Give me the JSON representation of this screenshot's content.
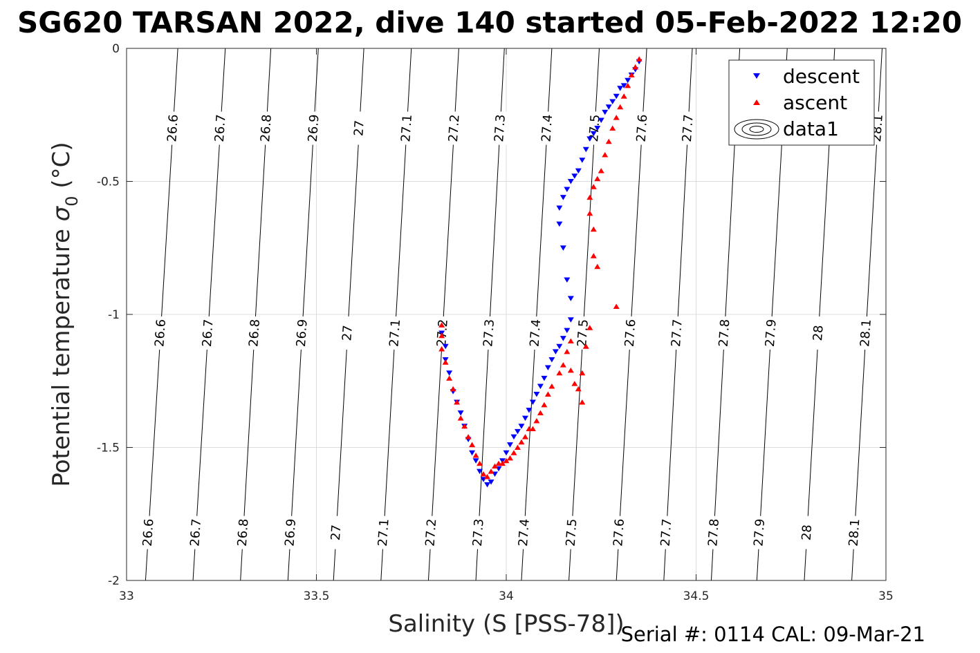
{
  "chart_data": {
    "type": "scatter",
    "title": "SG620 TARSAN 2022, dive 140 started 05-Feb-2022 12:20",
    "xlabel": "Salinity (S [PSS-78])",
    "ylabel_main": "Potential temperature ",
    "ylabel_symbol": "σ",
    "ylabel_sub": "0",
    "ylabel_unit": " (°C)",
    "footer": "Serial #: 0114  CAL: 09-Mar-21",
    "xlim": [
      33,
      35
    ],
    "ylim": [
      -2,
      0
    ],
    "x_ticks": [
      33,
      33.5,
      34,
      34.5,
      35
    ],
    "x_tick_labels": [
      "33",
      "33.5",
      "34",
      "34.5",
      "35"
    ],
    "y_ticks": [
      0,
      -0.5,
      -1,
      -1.5,
      -2
    ],
    "y_tick_labels": [
      "0",
      "-0.5",
      "-1",
      "-1.5",
      "-2"
    ],
    "grid": true,
    "legend_position": "top-right",
    "legend": [
      "descent",
      "ascent",
      "data1"
    ],
    "colors": {
      "descent": "#0000ff",
      "ascent": "#ff0000",
      "contour": "#000000",
      "grid": "#dcdcdc"
    },
    "isopycnals": {
      "levels": [
        26.6,
        26.7,
        26.8,
        26.9,
        27,
        27.1,
        27.2,
        27.3,
        27.4,
        27.5,
        27.6,
        27.7,
        27.8,
        27.9,
        28,
        28.1
      ],
      "labels": [
        "26.6",
        "26.7",
        "26.8",
        "26.9",
        "27",
        "27.1",
        "27.2",
        "27.3",
        "27.4",
        "27.5",
        "27.6",
        "27.7",
        "27.8",
        "27.9",
        "28",
        "28.1"
      ],
      "salinity_at_theta_0": [
        33.135,
        33.26,
        33.38,
        33.505,
        33.625,
        33.75,
        33.875,
        33.995,
        34.12,
        34.245,
        34.37,
        34.49,
        34.615,
        34.74,
        34.865,
        34.99
      ],
      "salinity_at_theta_minus2": [
        33.05,
        33.175,
        33.3,
        33.425,
        33.545,
        33.67,
        33.795,
        33.92,
        34.04,
        34.165,
        34.29,
        34.415,
        34.54,
        34.66,
        34.785,
        34.91
      ],
      "label_rows_theta": [
        -0.3,
        -1.07,
        -1.82
      ]
    },
    "series": [
      {
        "name": "descent",
        "marker": "triangle-down",
        "points": [
          [
            34.35,
            -0.05
          ],
          [
            34.34,
            -0.08
          ],
          [
            34.33,
            -0.1
          ],
          [
            34.32,
            -0.12
          ],
          [
            34.31,
            -0.14
          ],
          [
            34.3,
            -0.15
          ],
          [
            34.29,
            -0.18
          ],
          [
            34.28,
            -0.2
          ],
          [
            34.27,
            -0.22
          ],
          [
            34.26,
            -0.24
          ],
          [
            34.25,
            -0.27
          ],
          [
            34.24,
            -0.3
          ],
          [
            34.23,
            -0.32
          ],
          [
            34.22,
            -0.34
          ],
          [
            34.21,
            -0.38
          ],
          [
            34.2,
            -0.42
          ],
          [
            34.19,
            -0.46
          ],
          [
            34.18,
            -0.48
          ],
          [
            34.17,
            -0.5
          ],
          [
            34.16,
            -0.53
          ],
          [
            34.15,
            -0.56
          ],
          [
            34.14,
            -0.6
          ],
          [
            34.14,
            -0.66
          ],
          [
            34.15,
            -0.75
          ],
          [
            34.16,
            -0.87
          ],
          [
            34.17,
            -0.94
          ],
          [
            34.17,
            -1.02
          ],
          [
            34.16,
            -1.06
          ],
          [
            34.15,
            -1.09
          ],
          [
            34.14,
            -1.12
          ],
          [
            34.13,
            -1.14
          ],
          [
            34.12,
            -1.17
          ],
          [
            34.11,
            -1.2
          ],
          [
            34.1,
            -1.24
          ],
          [
            34.09,
            -1.27
          ],
          [
            34.08,
            -1.3
          ],
          [
            34.07,
            -1.33
          ],
          [
            34.06,
            -1.36
          ],
          [
            34.05,
            -1.39
          ],
          [
            34.04,
            -1.42
          ],
          [
            34.03,
            -1.44
          ],
          [
            34.02,
            -1.46
          ],
          [
            34.01,
            -1.49
          ],
          [
            34.0,
            -1.52
          ],
          [
            33.99,
            -1.55
          ],
          [
            33.98,
            -1.58
          ],
          [
            33.97,
            -1.6
          ],
          [
            33.96,
            -1.63
          ],
          [
            33.95,
            -1.64
          ],
          [
            33.94,
            -1.62
          ],
          [
            33.93,
            -1.59
          ],
          [
            33.92,
            -1.55
          ],
          [
            33.91,
            -1.52
          ],
          [
            33.9,
            -1.47
          ],
          [
            33.89,
            -1.42
          ],
          [
            33.88,
            -1.37
          ],
          [
            33.87,
            -1.33
          ],
          [
            33.86,
            -1.29
          ],
          [
            33.85,
            -1.22
          ],
          [
            33.84,
            -1.17
          ],
          [
            33.84,
            -1.12
          ],
          [
            33.83,
            -1.07
          ]
        ]
      },
      {
        "name": "ascent",
        "marker": "triangle-up",
        "points": [
          [
            34.35,
            -0.04
          ],
          [
            34.34,
            -0.07
          ],
          [
            34.33,
            -0.1
          ],
          [
            34.32,
            -0.14
          ],
          [
            34.31,
            -0.18
          ],
          [
            34.3,
            -0.22
          ],
          [
            34.29,
            -0.26
          ],
          [
            34.28,
            -0.3
          ],
          [
            34.27,
            -0.35
          ],
          [
            34.26,
            -0.4
          ],
          [
            34.25,
            -0.46
          ],
          [
            34.24,
            -0.49
          ],
          [
            34.23,
            -0.52
          ],
          [
            34.22,
            -0.56
          ],
          [
            34.22,
            -0.62
          ],
          [
            34.23,
            -0.68
          ],
          [
            34.23,
            -0.78
          ],
          [
            34.24,
            -0.82
          ],
          [
            34.29,
            -0.97
          ],
          [
            34.22,
            -1.05
          ],
          [
            34.21,
            -1.12
          ],
          [
            34.2,
            -1.22
          ],
          [
            34.19,
            -1.28
          ],
          [
            34.2,
            -1.33
          ],
          [
            34.18,
            -1.26
          ],
          [
            34.17,
            -1.21
          ],
          [
            34.17,
            -1.1
          ],
          [
            34.16,
            -1.14
          ],
          [
            34.15,
            -1.19
          ],
          [
            34.14,
            -1.22
          ],
          [
            34.12,
            -1.27
          ],
          [
            34.11,
            -1.3
          ],
          [
            34.1,
            -1.34
          ],
          [
            34.09,
            -1.37
          ],
          [
            34.08,
            -1.4
          ],
          [
            34.07,
            -1.43
          ],
          [
            34.06,
            -1.43
          ],
          [
            34.05,
            -1.46
          ],
          [
            34.04,
            -1.48
          ],
          [
            34.03,
            -1.5
          ],
          [
            34.02,
            -1.52
          ],
          [
            34.01,
            -1.54
          ],
          [
            34.0,
            -1.55
          ],
          [
            33.99,
            -1.56
          ],
          [
            33.98,
            -1.56
          ],
          [
            33.97,
            -1.57
          ],
          [
            33.96,
            -1.59
          ],
          [
            33.95,
            -1.61
          ],
          [
            33.94,
            -1.6
          ],
          [
            33.93,
            -1.56
          ],
          [
            33.92,
            -1.53
          ],
          [
            33.91,
            -1.49
          ],
          [
            33.9,
            -1.46
          ],
          [
            33.89,
            -1.42
          ],
          [
            33.88,
            -1.39
          ],
          [
            33.87,
            -1.33
          ],
          [
            33.86,
            -1.28
          ],
          [
            33.85,
            -1.24
          ],
          [
            33.84,
            -1.18
          ],
          [
            33.83,
            -1.13
          ],
          [
            33.83,
            -1.08
          ],
          [
            33.83,
            -1.04
          ]
        ]
      }
    ]
  }
}
